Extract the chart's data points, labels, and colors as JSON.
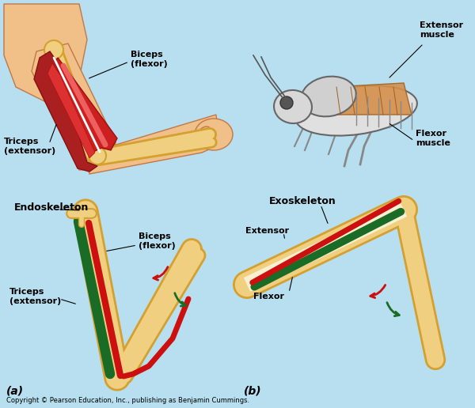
{
  "bg_color": "#b8dff0",
  "bone_color": "#f0d080",
  "bone_edge_color": "#d4a030",
  "green_muscle": "#1a6b25",
  "red_muscle": "#cc1010",
  "skin_color": "#f0c088",
  "skin_edge": "#c07848",
  "arrow_red": "#cc1010",
  "arrow_green": "#1a6b25",
  "label_a": "(a)",
  "label_b": "(b)",
  "copyright": "Copyright © Pearson Education, Inc., publishing as Benjamin Cummings.",
  "endoskeleton": "Endoskeleton",
  "biceps_flexor": "Biceps\n(flexor)",
  "triceps_extensor": "Triceps\n(extensor)",
  "exoskeleton": "Exoskeleton",
  "extensor": "Extensor",
  "flexor": "Flexor",
  "extensor_muscle": "Extensor\nmuscle",
  "flexor_muscle": "Flexor\nmuscle"
}
